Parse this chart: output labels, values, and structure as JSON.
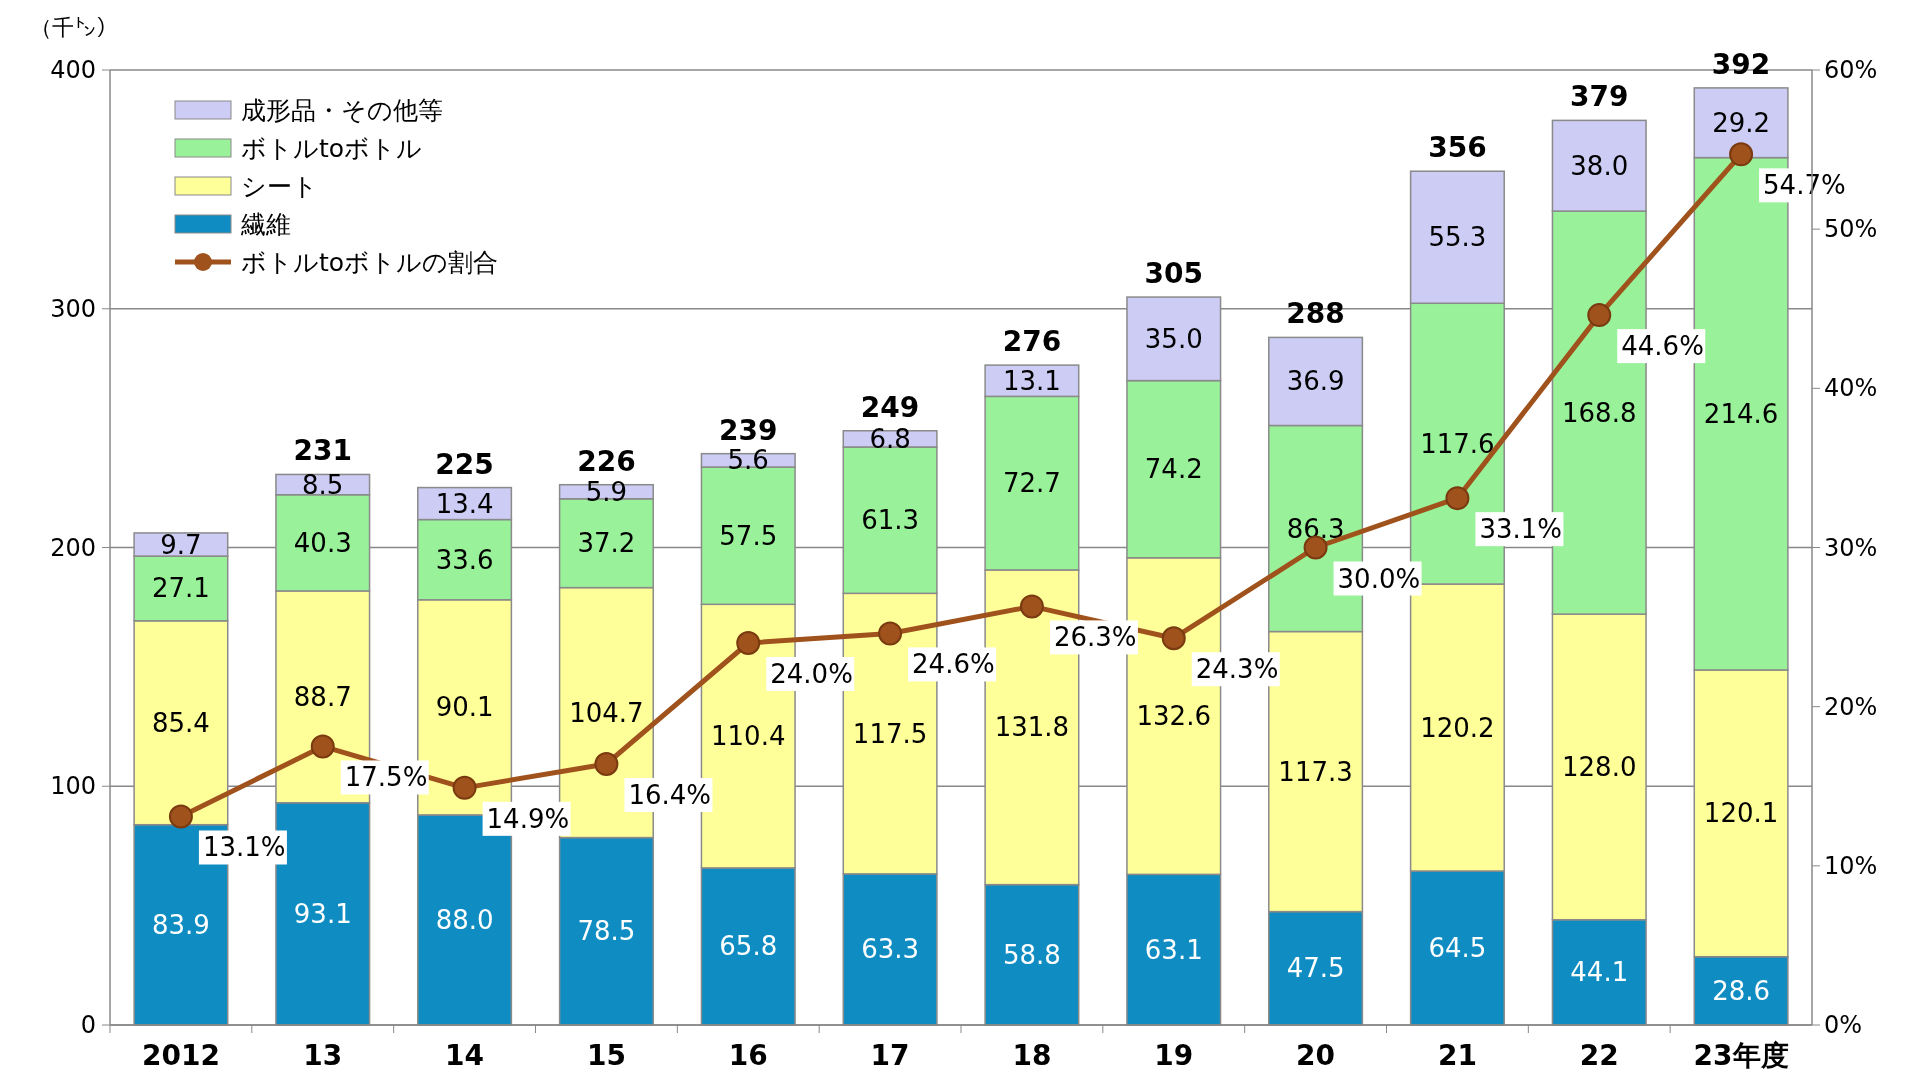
{
  "chart_data": {
    "type": "bar",
    "stacked": true,
    "ylabel": "（千㌧）",
    "categories": [
      "2012",
      "13",
      "14",
      "15",
      "16",
      "17",
      "18",
      "19",
      "20",
      "21",
      "22",
      "23年度"
    ],
    "series": [
      {
        "name": "繊維",
        "color": "#0f8dc2",
        "values": [
          83.9,
          93.1,
          88.0,
          78.5,
          65.8,
          63.3,
          58.8,
          63.1,
          47.5,
          64.5,
          44.1,
          28.6
        ],
        "value_labels": [
          "83.9",
          "93.1",
          "88.0",
          "78.5",
          "65.8",
          "63.3",
          "58.8",
          "63.1",
          "47.5",
          "64.5",
          "44.1",
          "28.6"
        ]
      },
      {
        "name": "シート",
        "color": "#ffff99",
        "values": [
          85.4,
          88.7,
          90.1,
          104.7,
          110.4,
          117.5,
          131.8,
          132.6,
          117.3,
          120.2,
          128.0,
          120.1
        ],
        "value_labels": [
          "85.4",
          "88.7",
          "90.1",
          "104.7",
          "110.4",
          "117.5",
          "131.8",
          "132.6",
          "117.3",
          "120.2",
          "128.0",
          "120.1"
        ]
      },
      {
        "name": "ボトルtoボトル",
        "color": "#99f299",
        "values": [
          27.1,
          40.3,
          33.6,
          37.2,
          57.5,
          61.3,
          72.7,
          74.2,
          86.3,
          117.6,
          168.8,
          214.6
        ],
        "value_labels": [
          "27.1",
          "40.3",
          "33.6",
          "37.2",
          "57.5",
          "61.3",
          "72.7",
          "74.2",
          "86.3",
          "117.6",
          "168.8",
          "214.6"
        ]
      },
      {
        "name": "成形品・その他等",
        "color": "#ccccf5",
        "values": [
          9.7,
          8.5,
          13.4,
          5.9,
          5.6,
          6.8,
          13.1,
          35.0,
          36.9,
          55.3,
          38.0,
          29.2
        ],
        "value_labels": [
          "9.7",
          "8.5",
          "13.4",
          "5.9",
          "5.6",
          "6.8",
          "13.1",
          "35.0",
          "36.9",
          "55.3",
          "38.0",
          "29.2"
        ]
      },
      {
        "name": "ボトルtoボトルの割合",
        "type": "line",
        "axis": "y2",
        "color": "#a0521d",
        "value_labels": [
          "13.1%",
          "17.5%",
          "14.9%",
          "16.4%",
          "24.0%",
          "24.6%",
          "26.3%",
          "24.3%",
          "30.0%",
          "33.1%",
          "44.6%",
          "54.7%"
        ],
        "values": [
          13.1,
          17.5,
          14.9,
          16.4,
          24.0,
          24.6,
          26.3,
          24.3,
          30.0,
          33.1,
          44.6,
          54.7
        ]
      }
    ],
    "totals": [
      null,
      "231",
      "225",
      "226",
      "239",
      "249",
      "276",
      "305",
      "288",
      "356",
      "379",
      "392"
    ],
    "ylim": [
      0,
      400
    ],
    "yticks": [
      0,
      100,
      200,
      300,
      400
    ],
    "y2lim": [
      0,
      60
    ],
    "y2ticks": [
      {
        "value": 0,
        "label": "0%"
      },
      {
        "value": 10,
        "label": "10%"
      },
      {
        "value": 20,
        "label": "20%"
      },
      {
        "value": 30,
        "label": "30%"
      },
      {
        "value": 40,
        "label": "40%"
      },
      {
        "value": 50,
        "label": "50%"
      },
      {
        "value": 60,
        "label": "60%"
      }
    ],
    "grid": "y",
    "legend": "top left",
    "marker": "circle",
    "line_style": "solid"
  }
}
